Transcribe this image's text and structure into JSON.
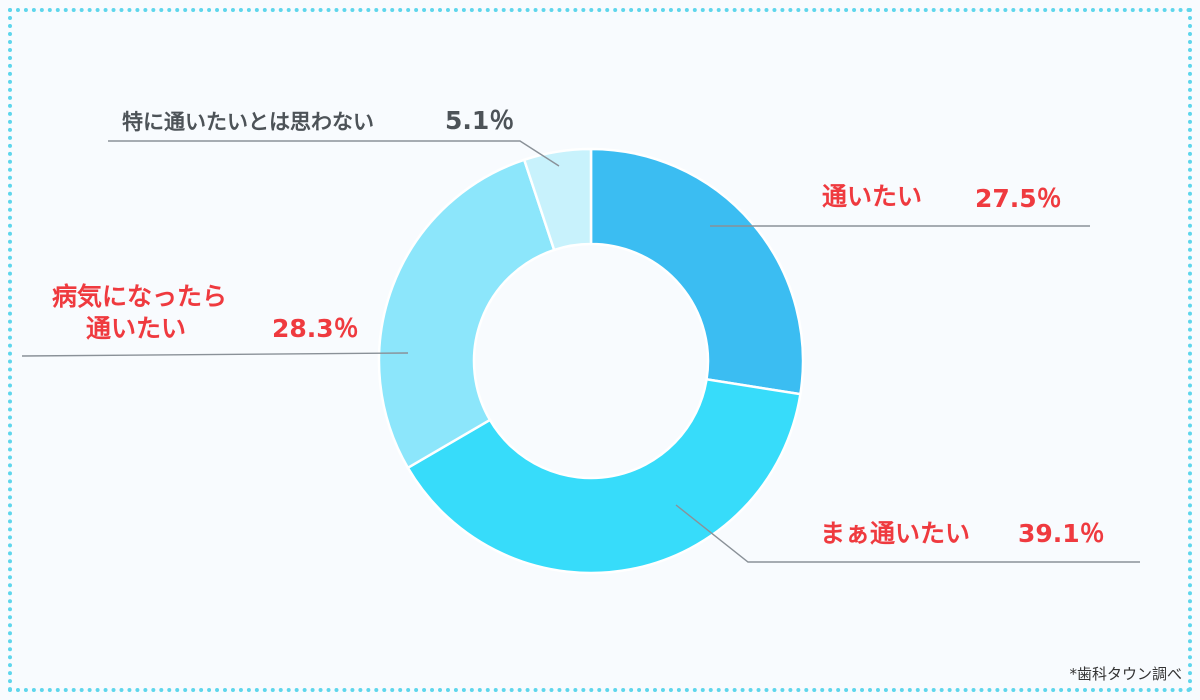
{
  "chart_data": {
    "type": "pie",
    "donut": true,
    "categories": [
      "通いたい",
      "まぁ通いたい",
      "病気になったら通いたい",
      "特に通いたいとは思わない"
    ],
    "values": [
      27.5,
      39.1,
      28.3,
      5.1
    ],
    "colors": [
      "#3bbdf2",
      "#37dcfa",
      "#8ce6fb",
      "#c8f2fc"
    ],
    "value_labels": [
      "27.5％",
      "39.1％",
      "28.3％",
      "5.1％"
    ],
    "label_lines": [
      [
        "通いたい"
      ],
      [
        "まぁ通いたい"
      ],
      [
        "病気になったら",
        "通いたい"
      ],
      [
        "特に通いたいとは思わない"
      ]
    ],
    "label_colors": [
      "#ef3a3f",
      "#ef3a3f",
      "#ef3a3f",
      "#4d5358"
    ]
  },
  "source_note": "*歯科タウン調べ",
  "border_color": "#5fd6ec"
}
